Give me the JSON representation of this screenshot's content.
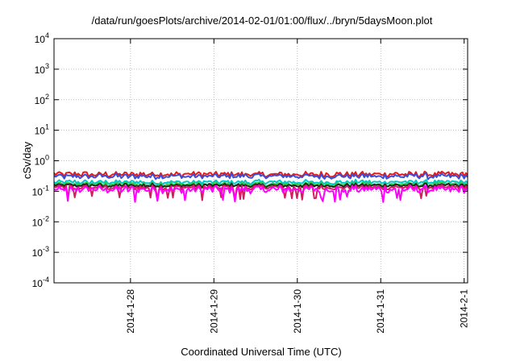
{
  "chart_data": {
    "type": "line",
    "title": "/data/run/goesPlots/archive/2014-02-01/01:00/flux/../bryn/5daysMoon.plot",
    "xlabel": "Coordinated Universal Time (UTC)",
    "ylabel": "cSv/day",
    "yscale": "log",
    "ylim": [
      0.0001,
      10000
    ],
    "xlim": [
      "2014-01-27 02:00",
      "2014-02-01 01:00"
    ],
    "grid": true,
    "y_ticks": [
      {
        "base": "10",
        "exp": "-4"
      },
      {
        "base": "10",
        "exp": "-3"
      },
      {
        "base": "10",
        "exp": "-2"
      },
      {
        "base": "10",
        "exp": "-1"
      },
      {
        "base": "10",
        "exp": "0"
      },
      {
        "base": "10",
        "exp": "1"
      },
      {
        "base": "10",
        "exp": "2"
      },
      {
        "base": "10",
        "exp": "3"
      },
      {
        "base": "10",
        "exp": "4"
      }
    ],
    "x_ticks": [
      "2014-1-28",
      "2014-1-29",
      "2014-1-30",
      "2014-1-31",
      "2014-2-1"
    ],
    "series": [
      {
        "color": "#e41a1c",
        "level": 0.36,
        "jitter": 0.22
      },
      {
        "color": "#3a4fd8",
        "level": 0.31,
        "jitter": 0.22
      },
      {
        "color": "#00c8c8",
        "level": 0.2,
        "jitter": 0.18
      },
      {
        "color": "#2ecc40",
        "level": 0.17,
        "jitter": 0.18
      },
      {
        "color": "#222222",
        "level": 0.155,
        "jitter": 0.16
      },
      {
        "color": "#d81b60",
        "level": 0.135,
        "jitter": 0.2
      },
      {
        "color": "#ff00ff",
        "level": 0.115,
        "jitter": 0.3
      }
    ]
  }
}
